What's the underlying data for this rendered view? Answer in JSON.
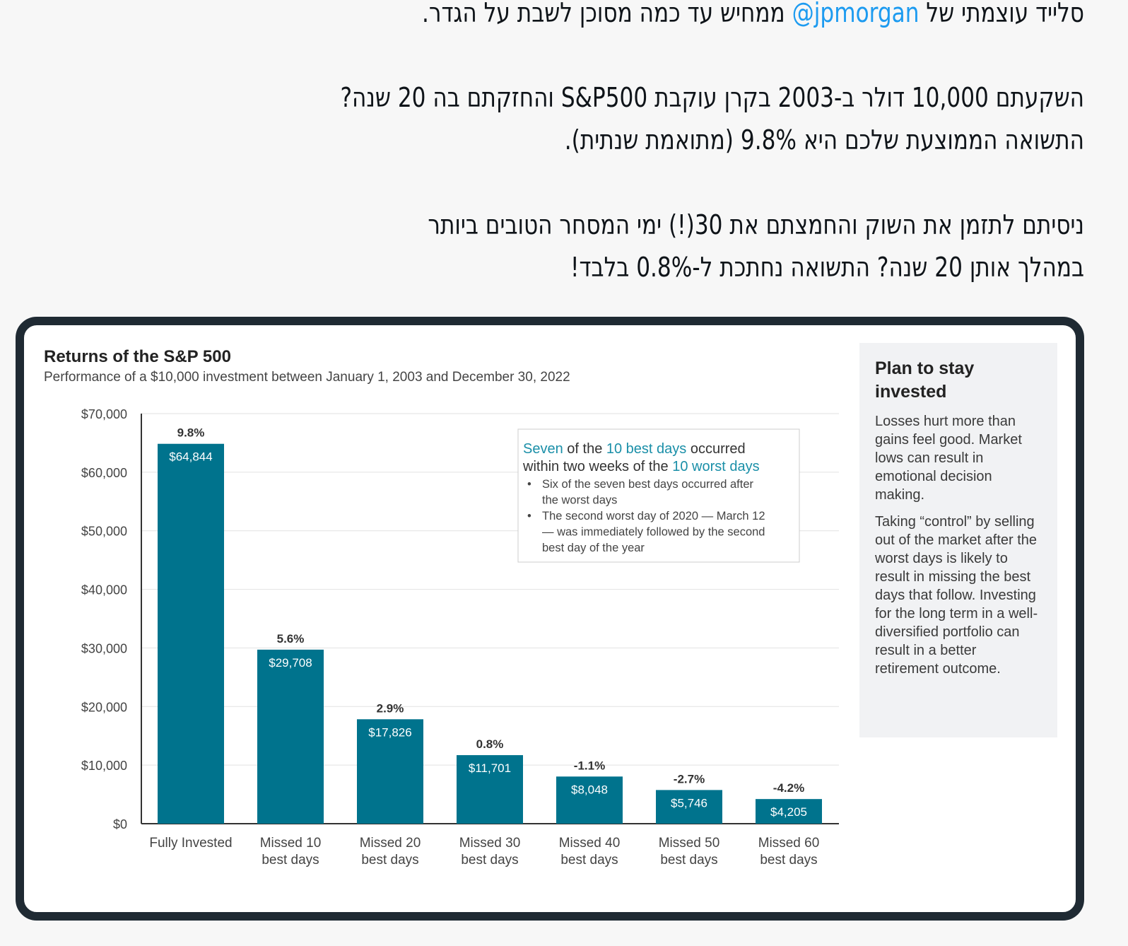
{
  "tweet": {
    "line1_before": "סלייד עוצמתי של ",
    "mention": "@jpmorgan",
    "line1_after": " ממחיש עד כמה מסוכן לשבת על הגדר.",
    "line2": "השקעתם 10,000 דולר ב-2003 בקרן עוקבת S&P500 והחזקתם בה 20 שנה?",
    "line3": "התשואה הממוצעת שלכם היא 9.8% (מתואמת שנתית).",
    "line4": "ניסיתם לתזמן את השוק והחמצתם את 30(!) ימי המסחר הטובים ביותר",
    "line5": "במהלך אותן 20 שנה? התשואה נחתכת ל-0.8% בלבד!"
  },
  "colors": {
    "bar": "#00738d",
    "accent": "#1a8fa8",
    "card_border": "#1f2a33",
    "mention": "#1d9bf0"
  },
  "chart_data": {
    "type": "bar",
    "title": "Returns of the S&P 500",
    "subtitle": "Performance of a $10,000 investment between January 1, 2003 and December 30, 2022",
    "categories": [
      "Fully Invested",
      "Missed 10 best days",
      "Missed 20 best days",
      "Missed 30 best days",
      "Missed 40 best days",
      "Missed 50 best days",
      "Missed 60 best days"
    ],
    "category_lines": [
      [
        "Fully Invested"
      ],
      [
        "Missed 10",
        "best days"
      ],
      [
        "Missed 20",
        "best days"
      ],
      [
        "Missed 30",
        "best days"
      ],
      [
        "Missed 40",
        "best days"
      ],
      [
        "Missed 50",
        "best days"
      ],
      [
        "Missed 60",
        "best days"
      ]
    ],
    "values": [
      64844,
      29708,
      17826,
      11701,
      8048,
      5746,
      4205
    ],
    "value_labels": [
      "$64,844",
      "$29,708",
      "$17,826",
      "$11,701",
      "$8,048",
      "$5,746",
      "$4,205"
    ],
    "return_labels": [
      "9.8%",
      "5.6%",
      "2.9%",
      "0.8%",
      "-1.1%",
      "-2.7%",
      "-4.2%"
    ],
    "ylim": [
      0,
      70000
    ],
    "yticks": [
      0,
      10000,
      20000,
      30000,
      40000,
      50000,
      60000,
      70000
    ],
    "ytick_labels": [
      "$0",
      "$10,000",
      "$20,000",
      "$30,000",
      "$40,000",
      "$50,000",
      "$60,000",
      "$70,000"
    ],
    "grid": true,
    "annotation": {
      "seg1": "Seven",
      "seg2": " of the ",
      "seg3": "10 best days",
      "seg4": " occurred",
      "seg5": "within two weeks of the ",
      "seg6": "10 worst days",
      "bullets": [
        [
          "Six of the seven best days occurred after",
          "the worst days"
        ],
        [
          "The second worst day of 2020 — March 12",
          "— was immediately followed by the second",
          "best day of the year"
        ]
      ]
    }
  },
  "panel": {
    "title": "Plan to stay invested",
    "p1": "Losses hurt more than gains feel good. Market lows can result in emotional decision making.",
    "p2": "Taking “control” by selling out of the market after the worst days is likely to result in missing the best days that follow. Investing for the long term in a well-diversified portfolio can result in a better retirement outcome."
  }
}
